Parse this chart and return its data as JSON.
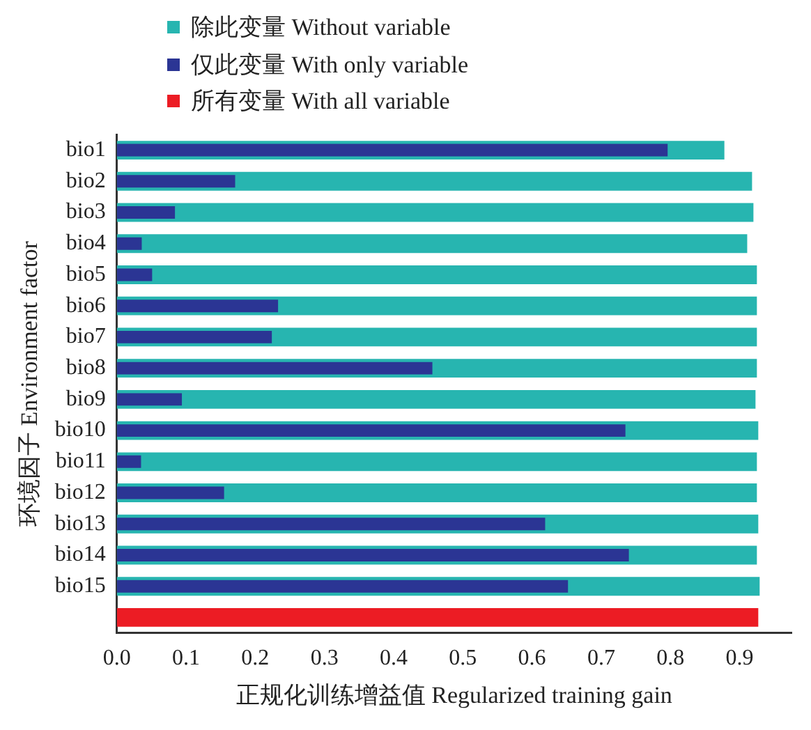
{
  "chart_data": {
    "type": "bar",
    "orientation": "horizontal",
    "xlabel": "正规化训练增益值 Regularized training gain",
    "ylabel": "环境因子 Environment factor",
    "legend": "top left",
    "categories": [
      "bio1",
      "bio2",
      "bio3",
      "bio4",
      "bio5",
      "bio6",
      "bio7",
      "bio8",
      "bio9",
      "bio10",
      "bio11",
      "bio12",
      "bio13",
      "bio14",
      "bio15",
      null
    ],
    "xlim": [
      0,
      0.975
    ],
    "xticks": [
      {
        "value": 0,
        "label": "0.0"
      },
      0.1,
      0.2,
      0.3,
      0.4,
      0.5,
      0.6,
      0.7,
      0.8,
      0.9
    ],
    "series": [
      {
        "name": "除此变量 Without variable",
        "color": "#27b5b0",
        "values": [
          0.878,
          0.918,
          0.92,
          0.911,
          0.925,
          0.925,
          0.925,
          0.925,
          0.923,
          0.927,
          0.925,
          0.925,
          0.927,
          0.925,
          0.929,
          null
        ]
      },
      {
        "name": "仅此变量 With only variable",
        "color": "#2b3594",
        "values": [
          0.796,
          0.171,
          0.084,
          0.036,
          0.051,
          0.233,
          0.224,
          0.456,
          0.094,
          0.735,
          0.035,
          0.155,
          0.619,
          0.74,
          0.652,
          null
        ]
      },
      {
        "name": "所有变量 With all variable",
        "color": "#ec1c24",
        "values": [
          null,
          null,
          null,
          null,
          null,
          null,
          null,
          null,
          null,
          null,
          null,
          null,
          null,
          null,
          null,
          0.927
        ]
      }
    ]
  }
}
